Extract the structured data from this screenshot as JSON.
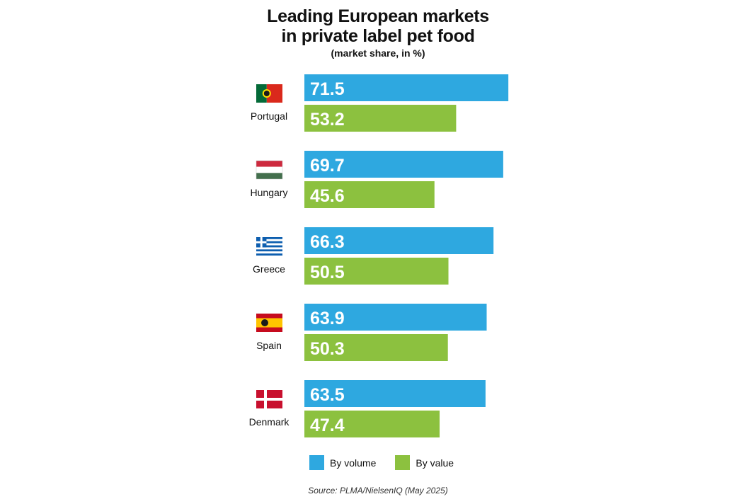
{
  "chart_data": {
    "type": "bar",
    "orientation": "horizontal",
    "title_line1": "Leading European markets",
    "title_line2": "in private label pet food",
    "subtitle": "(market share, in %)",
    "categories": [
      "Portugal",
      "Hungary",
      "Greece",
      "Spain",
      "Denmark"
    ],
    "series": [
      {
        "name": "By volume",
        "color": "#2ea8e0",
        "values": [
          71.5,
          69.7,
          66.3,
          63.9,
          63.5
        ]
      },
      {
        "name": "By value",
        "color": "#8cc13f",
        "values": [
          53.2,
          45.6,
          50.5,
          50.3,
          47.4
        ]
      }
    ],
    "value_labels": [
      [
        "71.5",
        "53.2"
      ],
      [
        "69.7",
        "45.6"
      ],
      [
        "66.3",
        "50.5"
      ],
      [
        "63.9",
        "50.3"
      ],
      [
        "63.5",
        "47.4"
      ]
    ],
    "xlim": [
      0,
      100
    ],
    "grid": false,
    "legend_position": "bottom",
    "source": "Source: PLMA/NielsenIQ (May 2025)",
    "flag_icons": [
      "portugal-flag-icon",
      "hungary-flag-icon",
      "greece-flag-icon",
      "spain-flag-icon",
      "denmark-flag-icon"
    ]
  }
}
